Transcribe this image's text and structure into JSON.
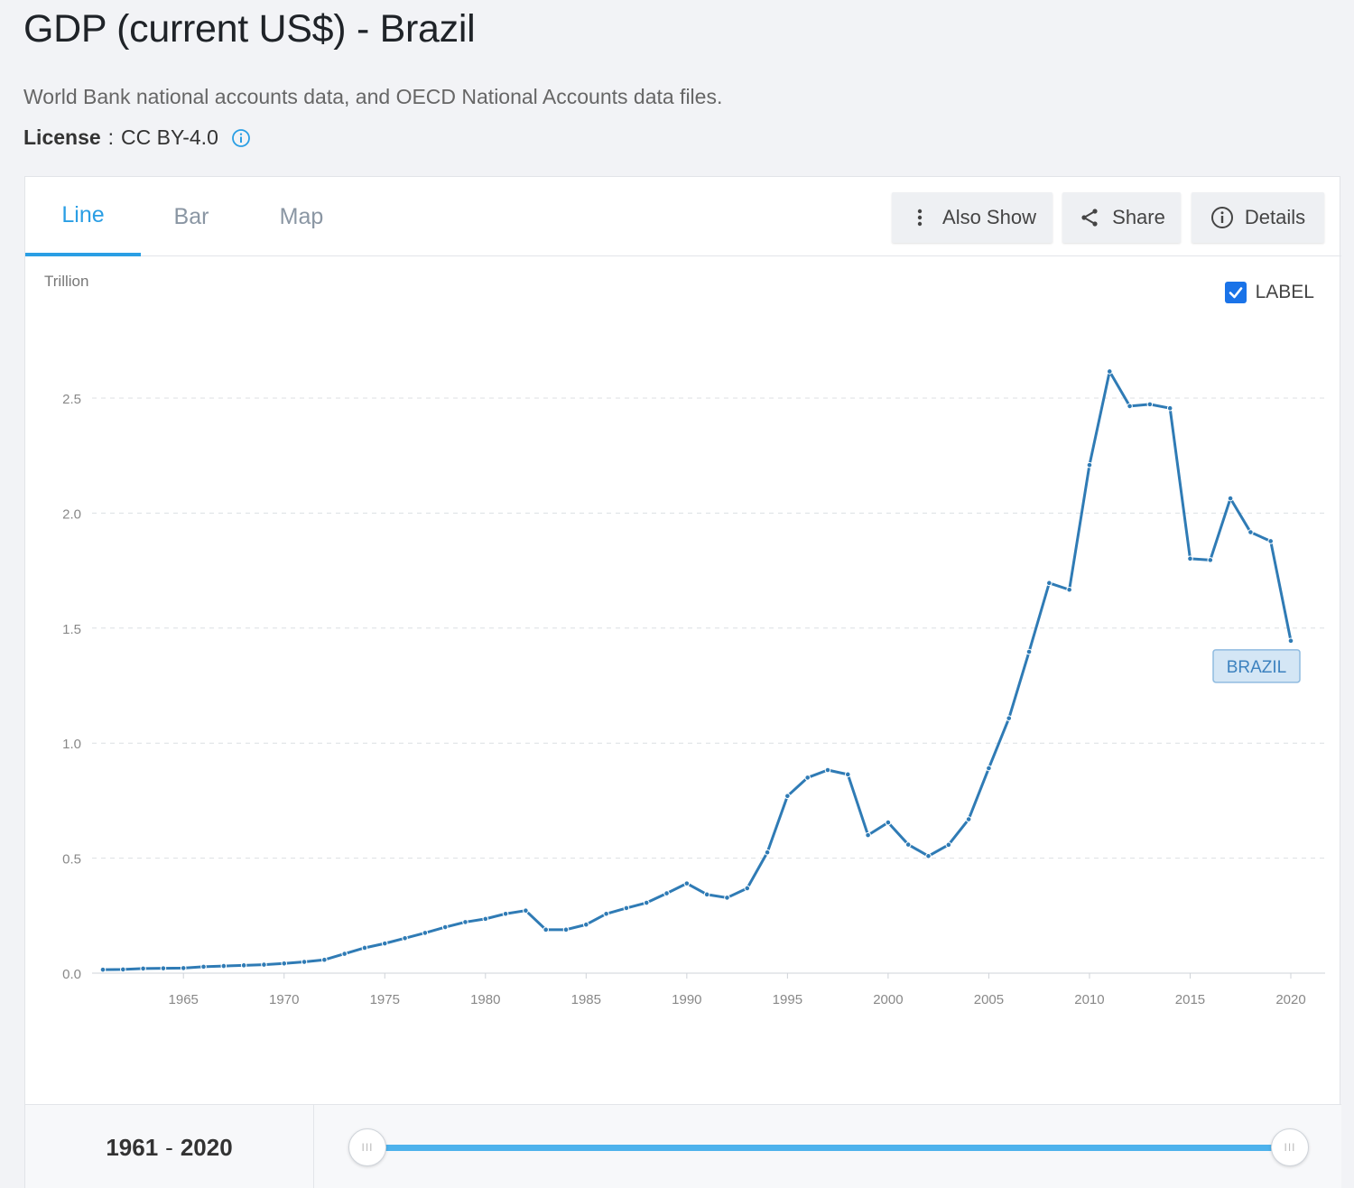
{
  "header": {
    "title": "GDP (current US$) - Brazil",
    "source": "World Bank national accounts data, and OECD National Accounts data files.",
    "license_label": "License",
    "license_value": "CC BY-4.0"
  },
  "tabs": [
    {
      "label": "Line",
      "active": true
    },
    {
      "label": "Bar",
      "active": false
    },
    {
      "label": "Map",
      "active": false
    }
  ],
  "toolbar": {
    "also_show": "Also Show",
    "share": "Share",
    "details": "Details"
  },
  "chart_controls": {
    "unit": "Trillion",
    "label_toggle": "LABEL",
    "label_checked": true
  },
  "range": {
    "start": "1961",
    "end": "2020"
  },
  "colors": {
    "accent": "#2a9ee4",
    "series": "#2f7bb5",
    "slider": "#4db2ec",
    "checkbox": "#1a73e8"
  },
  "chart_data": {
    "type": "line",
    "ylabel": "Trillion",
    "ylim": [
      0,
      2.8
    ],
    "xlim": [
      1961,
      2020
    ],
    "y_ticks": [
      "0.0",
      "0.5",
      "1.0",
      "1.5",
      "2.0",
      "2.5"
    ],
    "y_tick_values": [
      0,
      0.5,
      1.0,
      1.5,
      2.0,
      2.5
    ],
    "x_ticks": [
      "1965",
      "1970",
      "1975",
      "1980",
      "1985",
      "1990",
      "1995",
      "2000",
      "2005",
      "2010",
      "2015",
      "2020"
    ],
    "x_tick_values": [
      1965,
      1970,
      1975,
      1980,
      1985,
      1990,
      1995,
      2000,
      2005,
      2010,
      2015,
      2020
    ],
    "grid": true,
    "series": [
      {
        "name": "BRAZIL",
        "x": [
          1961,
          1962,
          1963,
          1964,
          1965,
          1966,
          1967,
          1968,
          1969,
          1970,
          1971,
          1972,
          1973,
          1974,
          1975,
          1976,
          1977,
          1978,
          1979,
          1980,
          1981,
          1982,
          1983,
          1984,
          1985,
          1986,
          1987,
          1988,
          1989,
          1990,
          1991,
          1992,
          1993,
          1994,
          1995,
          1996,
          1997,
          1998,
          1999,
          2000,
          2001,
          2002,
          2003,
          2004,
          2005,
          2006,
          2007,
          2008,
          2009,
          2010,
          2011,
          2012,
          2013,
          2014,
          2015,
          2016,
          2017,
          2018,
          2019,
          2020
        ],
        "values": [
          0.015,
          0.016,
          0.02,
          0.021,
          0.022,
          0.028,
          0.031,
          0.034,
          0.037,
          0.042,
          0.049,
          0.058,
          0.084,
          0.11,
          0.129,
          0.152,
          0.175,
          0.2,
          0.222,
          0.236,
          0.258,
          0.272,
          0.189,
          0.189,
          0.211,
          0.258,
          0.283,
          0.306,
          0.347,
          0.39,
          0.342,
          0.328,
          0.369,
          0.525,
          0.77,
          0.85,
          0.883,
          0.864,
          0.6,
          0.655,
          0.559,
          0.509,
          0.558,
          0.669,
          0.891,
          1.108,
          1.397,
          1.696,
          1.667,
          2.209,
          2.616,
          2.465,
          2.473,
          2.456,
          1.802,
          1.796,
          2.064,
          1.917,
          1.878,
          1.445
        ]
      }
    ],
    "series_label": "BRAZIL"
  }
}
